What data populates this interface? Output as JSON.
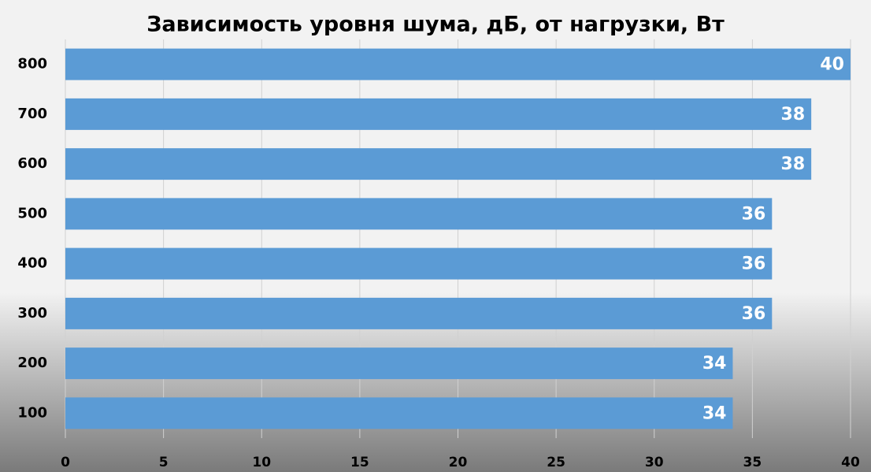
{
  "chart_data": {
    "type": "barh",
    "title": "Зависимость уровня шума, дБ, от нагрузки, Вт",
    "categories": [
      "100",
      "200",
      "300",
      "400",
      "500",
      "600",
      "700",
      "800"
    ],
    "values": [
      34,
      34,
      36,
      36,
      36,
      38,
      38,
      40
    ],
    "color": "#5b9bd5",
    "xlim": [
      0,
      40
    ],
    "xticks": [
      0,
      5,
      10,
      15,
      20,
      25,
      30,
      35,
      40
    ],
    "grid": true
  }
}
